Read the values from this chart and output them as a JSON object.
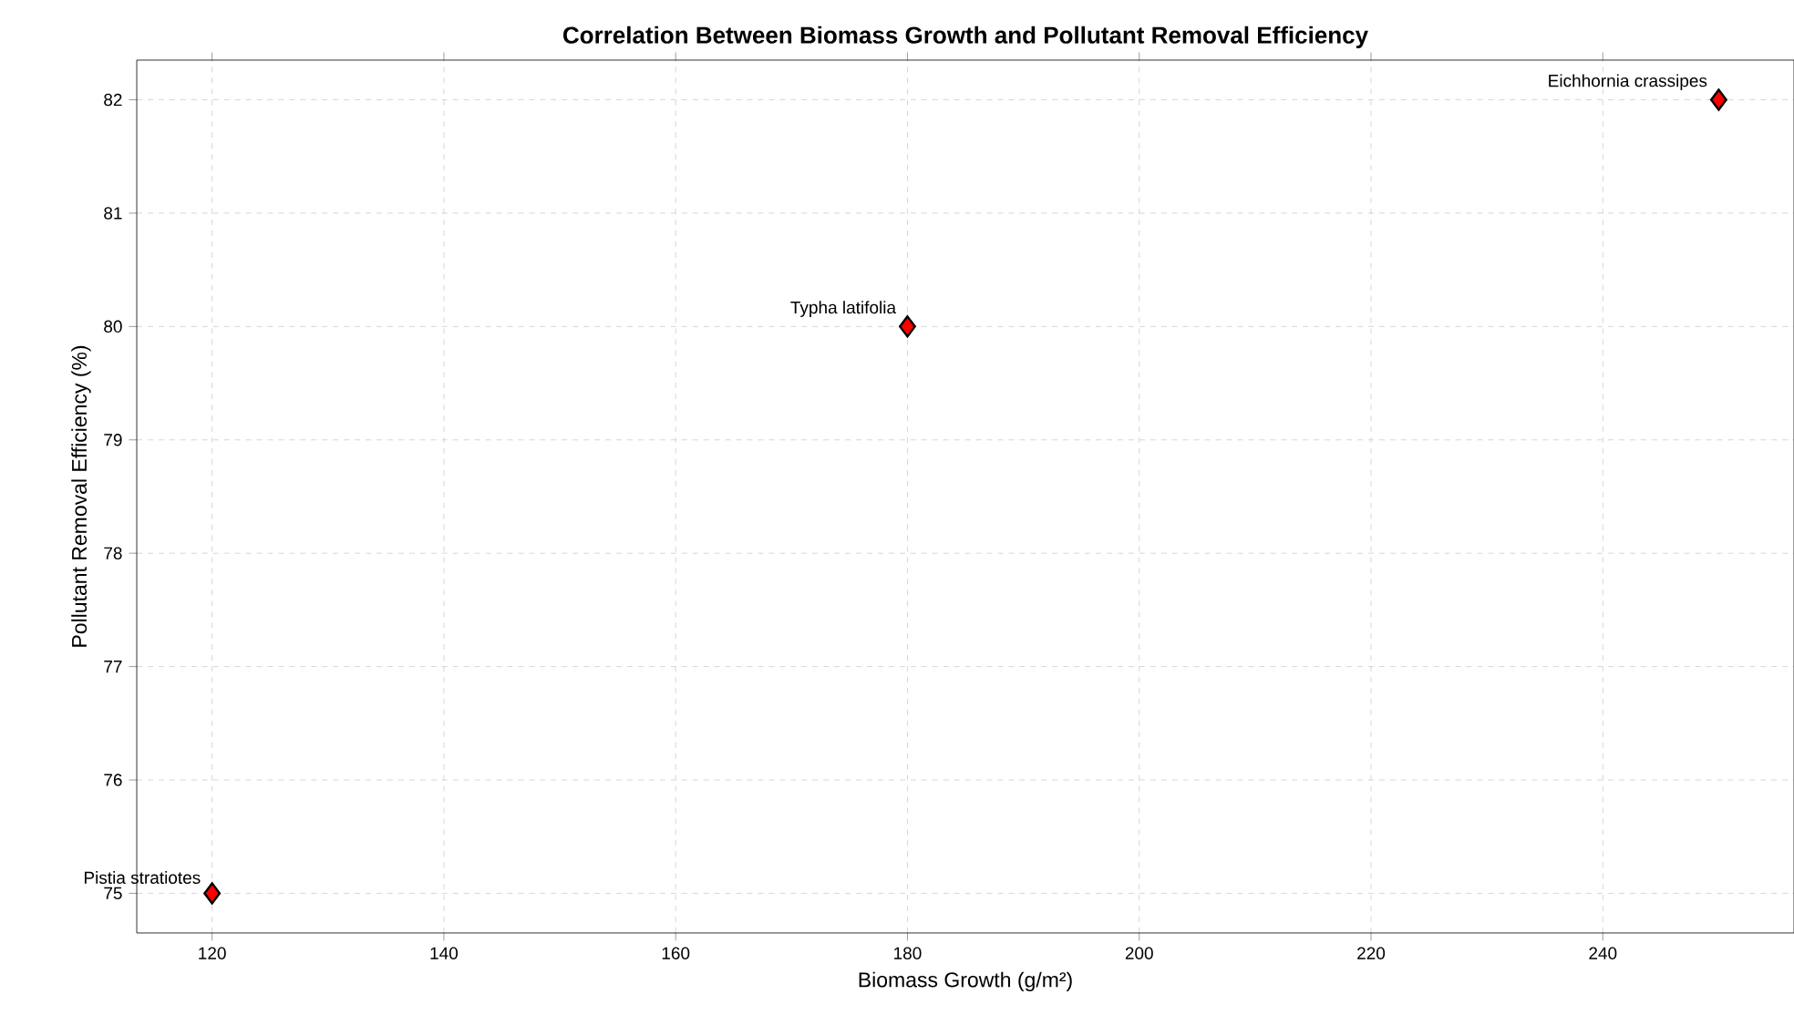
{
  "chart_data": {
    "type": "scatter",
    "title": "Correlation Between Biomass Growth and Pollutant Removal Efficiency",
    "xlabel": "Biomass Growth (g/m²)",
    "ylabel": "Pollutant Removal Efficiency (%)",
    "x": [
      120,
      180,
      250
    ],
    "values": [
      75,
      80,
      82
    ],
    "color": "#ff0000",
    "marker": "diamond",
    "xlim": [
      113.5,
      256.5
    ],
    "ylim": [
      74.65,
      82.35
    ],
    "xticks": [
      120,
      140,
      160,
      180,
      200,
      220,
      240
    ],
    "yticks": [
      75,
      76,
      77,
      78,
      79,
      80,
      81,
      82
    ],
    "grid": true,
    "annotations": [
      {
        "text": "Pistia stratiotes",
        "x": 120,
        "y": 75
      },
      {
        "text": "Typha latifolia",
        "x": 180,
        "y": 80
      },
      {
        "text": "Eichhornia crassipes",
        "x": 250,
        "y": 82
      }
    ]
  }
}
